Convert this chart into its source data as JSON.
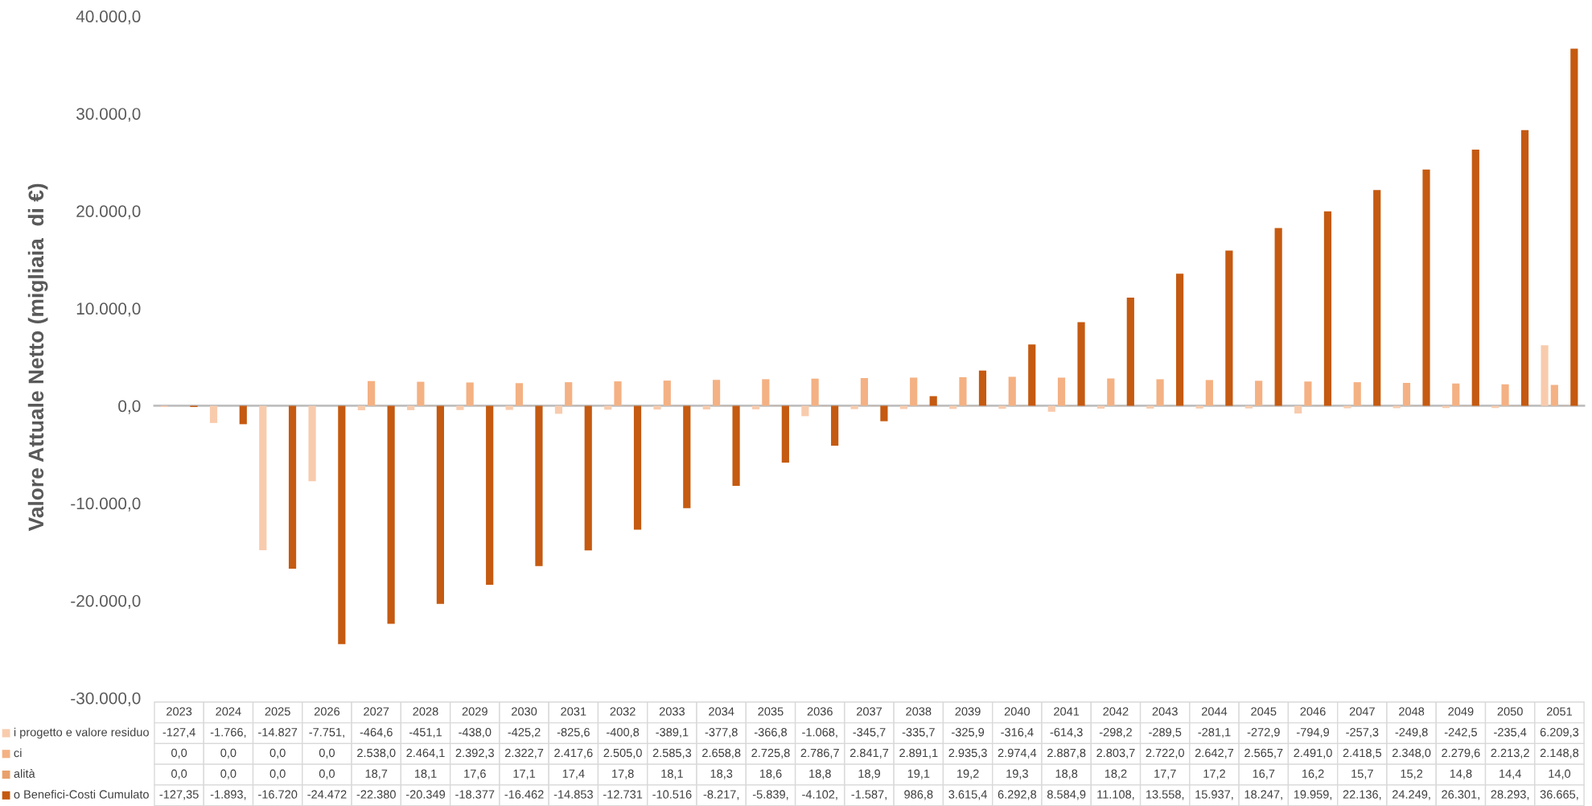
{
  "chart_data": {
    "type": "bar",
    "ylabel": "Valore Attuale Netto (migliaia  di €)",
    "categories": [
      "2023",
      "2024",
      "2025",
      "2026",
      "2027",
      "2028",
      "2029",
      "2030",
      "2031",
      "2032",
      "2033",
      "2034",
      "2035",
      "2036",
      "2037",
      "2038",
      "2039",
      "2040",
      "2041",
      "2042",
      "2043",
      "2044",
      "2045",
      "2046",
      "2047",
      "2048",
      "2049",
      "2050",
      "2051"
    ],
    "series": [
      {
        "name": "i progetto e valore residuo",
        "color": "#f8cbad",
        "values": [
          -127.4,
          -1766,
          -14827,
          -7751,
          -464.6,
          -451.1,
          -438.0,
          -425.2,
          -825.6,
          -400.8,
          -389.1,
          -377.8,
          -366.8,
          -1068,
          -345.7,
          -335.7,
          -325.9,
          -316.4,
          -614.3,
          -298.2,
          -289.5,
          -281.1,
          -272.9,
          -794.9,
          -257.3,
          -249.8,
          -242.5,
          -235.4,
          6209.3
        ],
        "value_labels": [
          "-127,4",
          "-1.766,",
          "-14.827",
          "-7.751,",
          "-464,6",
          "-451,1",
          "-438,0",
          "-425,2",
          "-825,6",
          "-400,8",
          "-389,1",
          "-377,8",
          "-366,8",
          "-1.068,",
          "-345,7",
          "-335,7",
          "-325,9",
          "-316,4",
          "-614,3",
          "-298,2",
          "-289,5",
          "-281,1",
          "-272,9",
          "-794,9",
          "-257,3",
          "-249,8",
          "-242,5",
          "-235,4",
          "6.209,3"
        ]
      },
      {
        "name": "ci",
        "color": "#f4b183",
        "values": [
          0,
          0,
          0,
          0,
          2538.0,
          2464.1,
          2392.3,
          2322.7,
          2417.6,
          2505.0,
          2585.3,
          2658.8,
          2725.8,
          2786.7,
          2841.7,
          2891.1,
          2935.3,
          2974.4,
          2887.8,
          2803.7,
          2722.0,
          2642.7,
          2565.7,
          2491.0,
          2418.5,
          2348.0,
          2279.6,
          2213.2,
          2148.8
        ],
        "value_labels": [
          "0,0",
          "0,0",
          "0,0",
          "0,0",
          "2.538,0",
          "2.464,1",
          "2.392,3",
          "2.322,7",
          "2.417,6",
          "2.505,0",
          "2.585,3",
          "2.658,8",
          "2.725,8",
          "2.786,7",
          "2.841,7",
          "2.891,1",
          "2.935,3",
          "2.974,4",
          "2.887,8",
          "2.803,7",
          "2.722,0",
          "2.642,7",
          "2.565,7",
          "2.491,0",
          "2.418,5",
          "2.348,0",
          "2.279,6",
          "2.213,2",
          "2.148,8"
        ]
      },
      {
        "name": "alità",
        "color": "#e9a06b",
        "values": [
          0,
          0,
          0,
          0,
          18.7,
          18.1,
          17.6,
          17.1,
          17.4,
          17.8,
          18.1,
          18.3,
          18.6,
          18.8,
          18.9,
          19.1,
          19.2,
          19.3,
          18.8,
          18.2,
          17.7,
          17.2,
          16.7,
          16.2,
          15.7,
          15.2,
          14.8,
          14.4,
          14.0
        ],
        "value_labels": [
          "0,0",
          "0,0",
          "0,0",
          "0,0",
          "18,7",
          "18,1",
          "17,6",
          "17,1",
          "17,4",
          "17,8",
          "18,1",
          "18,3",
          "18,6",
          "18,8",
          "18,9",
          "19,1",
          "19,2",
          "19,3",
          "18,8",
          "18,2",
          "17,7",
          "17,2",
          "16,7",
          "16,2",
          "15,7",
          "15,2",
          "14,8",
          "14,4",
          "14,0"
        ]
      },
      {
        "name": "o Benefici-Costi Cumulato",
        "color": "#c55a11",
        "values": [
          -127.35,
          -1893,
          -16720,
          -24472,
          -22380,
          -20349,
          -18377,
          -16462,
          -14853,
          -12731,
          -10516,
          -8217,
          -5839,
          -4102,
          -1587,
          986.8,
          3615.4,
          6292.8,
          8584.9,
          11108,
          13558,
          15937,
          18247,
          19959,
          22136,
          24249,
          26301,
          28293,
          36665
        ],
        "value_labels": [
          "-127,35",
          "-1.893,",
          "-16.720",
          "-24.472",
          "-22.380",
          "-20.349",
          "-18.377",
          "-16.462",
          "-14.853",
          "-12.731",
          "-10.516",
          "-8.217,",
          "-5.839,",
          "-4.102,",
          "-1.587,",
          "986,8",
          "3.615,4",
          "6.292,8",
          "8.584,9",
          "11.108,",
          "13.558,",
          "15.937,",
          "18.247,",
          "19.959,",
          "22.136,",
          "24.249,",
          "26.301,",
          "28.293,",
          "36.665,"
        ]
      }
    ],
    "ylim": [
      -30000,
      40000
    ],
    "yticks": [
      {
        "value": -30000,
        "label": "-30.000,0"
      },
      {
        "value": -20000,
        "label": "-20.000,0"
      },
      {
        "value": -10000,
        "label": "-10.000,0"
      },
      {
        "value": 0,
        "label": "0,0"
      },
      {
        "value": 10000,
        "label": "10.000,0"
      },
      {
        "value": 20000,
        "label": "20.000,0"
      },
      {
        "value": 30000,
        "label": "30.000,0"
      },
      {
        "value": 40000,
        "label": "40.000,0"
      }
    ],
    "legend": "bottom left"
  }
}
